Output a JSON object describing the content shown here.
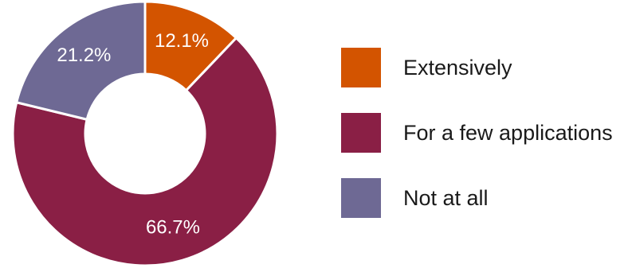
{
  "chart_data": {
    "type": "pie",
    "donut": true,
    "title": "",
    "slices": [
      {
        "label": "Extensively",
        "value": 12.1,
        "value_label": "12.1%",
        "color": "#D35400"
      },
      {
        "label": "For a few applications",
        "value": 66.7,
        "value_label": "66.7%",
        "color": "#8A1F45"
      },
      {
        "label": "Not at all",
        "value": 21.2,
        "value_label": "21.2%",
        "color": "#6E6994"
      }
    ],
    "legend_position": "right"
  }
}
